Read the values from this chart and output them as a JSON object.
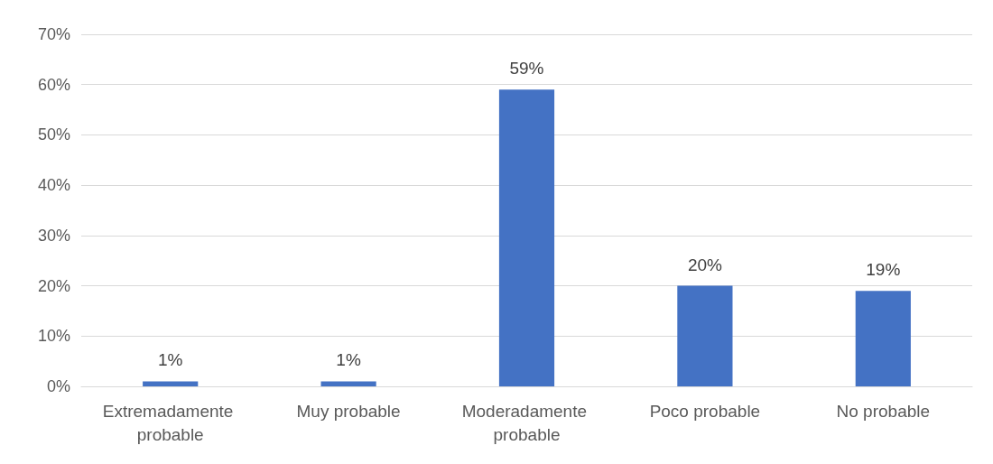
{
  "chart_data": {
    "type": "bar",
    "categories": [
      "Extremadamente probable",
      "Muy probable",
      "Moderadamente probable",
      "Poco probable",
      "No probable"
    ],
    "values": [
      1,
      1,
      59,
      20,
      19
    ],
    "color": "#4472c4",
    "value_labels": [
      "1%",
      "1%",
      "59%",
      "20%",
      "19%"
    ],
    "ylim": [
      0,
      70
    ],
    "yticks": [
      {
        "value": 0,
        "label": "0%"
      },
      {
        "value": 10,
        "label": "10%"
      },
      {
        "value": 20,
        "label": "20%"
      },
      {
        "value": 30,
        "label": "30%"
      },
      {
        "value": 40,
        "label": "40%"
      },
      {
        "value": 50,
        "label": "50%"
      },
      {
        "value": 60,
        "label": "60%"
      },
      {
        "value": 70,
        "label": "70%"
      }
    ],
    "grid": "y"
  }
}
